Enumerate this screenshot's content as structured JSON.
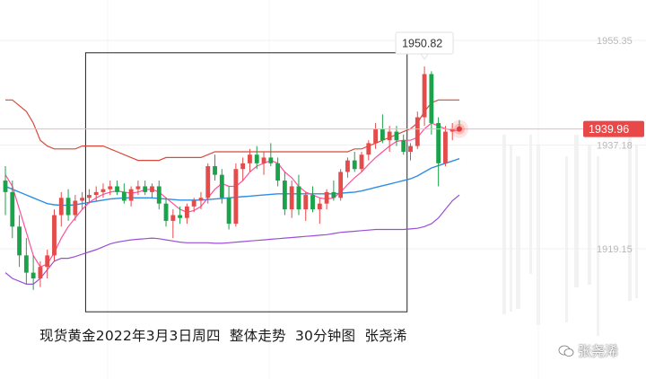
{
  "chart_data": {
    "type": "candlestick",
    "title": "",
    "price_axis_ticks": [
      1955.35,
      1937.18,
      1919.15
    ],
    "current_price": 1939.96,
    "high_annotation": 1950.82,
    "ylim": [
      1905,
      1960
    ],
    "colors": {
      "up": "#e44b4b",
      "down": "#1aa34a",
      "upper_band": "#d74a3c",
      "middle_band": "#2f8de4",
      "lower_band": "#9a4fd6",
      "short_ma": "#ff4f9b",
      "box": "#222222",
      "price_line": "#f0a0a0"
    },
    "candles": [
      [
        1931.0,
        1933.5,
        1925.0,
        1929.0
      ],
      [
        1929.0,
        1931.0,
        1921.0,
        1923.0
      ],
      [
        1923.0,
        1925.0,
        1916.0,
        1918.0
      ],
      [
        1918.0,
        1921.0,
        1913.0,
        1915.0
      ],
      [
        1915.0,
        1918.0,
        1912.0,
        1914.0
      ],
      [
        1914.0,
        1917.0,
        1912.5,
        1916.0
      ],
      [
        1916.0,
        1919.0,
        1914.0,
        1918.0
      ],
      [
        1918.0,
        1926.0,
        1917.0,
        1925.0
      ],
      [
        1925.0,
        1929.0,
        1923.0,
        1928.0
      ],
      [
        1928.0,
        1929.5,
        1924.0,
        1925.0
      ],
      [
        1925.0,
        1928.5,
        1924.0,
        1927.5
      ],
      [
        1927.5,
        1929.0,
        1926.0,
        1928.0
      ],
      [
        1928.0,
        1929.5,
        1927.0,
        1928.5
      ],
      [
        1928.5,
        1930.0,
        1927.5,
        1929.0
      ],
      [
        1929.0,
        1930.5,
        1928.0,
        1929.5
      ],
      [
        1929.5,
        1931.0,
        1928.5,
        1930.0
      ],
      [
        1930.0,
        1931.0,
        1928.5,
        1929.0
      ],
      [
        1929.0,
        1930.5,
        1927.0,
        1927.5
      ],
      [
        1927.5,
        1930.0,
        1926.5,
        1929.5
      ],
      [
        1929.5,
        1931.0,
        1928.5,
        1930.0
      ],
      [
        1930.0,
        1931.0,
        1928.5,
        1929.0
      ],
      [
        1929.0,
        1930.5,
        1928.0,
        1930.0
      ],
      [
        1930.0,
        1931.0,
        1926.0,
        1927.0
      ],
      [
        1927.0,
        1928.0,
        1923.0,
        1924.0
      ],
      [
        1924.0,
        1926.0,
        1921.0,
        1925.0
      ],
      [
        1925.0,
        1926.5,
        1923.5,
        1924.5
      ],
      [
        1924.5,
        1927.0,
        1923.5,
        1926.5
      ],
      [
        1926.5,
        1928.0,
        1925.5,
        1927.5
      ],
      [
        1927.5,
        1929.0,
        1926.0,
        1928.0
      ],
      [
        1928.0,
        1934.0,
        1927.0,
        1933.5
      ],
      [
        1933.5,
        1935.5,
        1931.0,
        1932.0
      ],
      [
        1932.0,
        1933.0,
        1927.0,
        1928.0
      ],
      [
        1928.0,
        1930.0,
        1922.5,
        1923.5
      ],
      [
        1923.5,
        1934.0,
        1923.0,
        1933.0
      ],
      [
        1933.0,
        1935.0,
        1931.0,
        1934.0
      ],
      [
        1934.0,
        1936.5,
        1932.5,
        1935.5
      ],
      [
        1935.5,
        1937.0,
        1933.0,
        1934.0
      ],
      [
        1934.0,
        1936.0,
        1932.0,
        1935.0
      ],
      [
        1935.0,
        1937.5,
        1933.5,
        1934.0
      ],
      [
        1934.0,
        1935.0,
        1930.0,
        1931.0
      ],
      [
        1931.0,
        1932.5,
        1925.0,
        1926.0
      ],
      [
        1926.0,
        1931.0,
        1924.5,
        1930.0
      ],
      [
        1930.0,
        1932.0,
        1925.0,
        1926.0
      ],
      [
        1926.0,
        1929.0,
        1924.0,
        1928.5
      ],
      [
        1928.5,
        1930.0,
        1925.5,
        1926.0
      ],
      [
        1926.0,
        1928.0,
        1923.5,
        1927.0
      ],
      [
        1927.0,
        1929.5,
        1926.0,
        1929.0
      ],
      [
        1929.0,
        1931.0,
        1927.5,
        1928.0
      ],
      [
        1928.0,
        1933.0,
        1927.5,
        1932.5
      ],
      [
        1932.5,
        1935.0,
        1931.5,
        1934.5
      ],
      [
        1934.5,
        1936.0,
        1932.5,
        1933.0
      ],
      [
        1933.0,
        1936.0,
        1932.5,
        1935.5
      ],
      [
        1935.5,
        1938.0,
        1934.5,
        1937.5
      ],
      [
        1937.5,
        1941.0,
        1936.5,
        1940.0
      ],
      [
        1940.0,
        1942.5,
        1937.5,
        1938.0
      ],
      [
        1938.0,
        1940.5,
        1936.0,
        1939.5
      ],
      [
        1939.5,
        1940.5,
        1937.0,
        1938.0
      ],
      [
        1938.0,
        1939.0,
        1935.5,
        1936.0
      ],
      [
        1936.0,
        1937.5,
        1934.5,
        1937.0
      ],
      [
        1937.0,
        1943.0,
        1936.5,
        1942.0
      ],
      [
        1942.0,
        1950.82,
        1940.5,
        1949.5
      ],
      [
        1949.5,
        1950.0,
        1939.0,
        1941.0
      ],
      [
        1941.0,
        1942.0,
        1930.0,
        1934.0
      ],
      [
        1934.0,
        1940.5,
        1933.5,
        1939.5
      ],
      [
        1939.5,
        1941.0,
        1938.0,
        1940.0
      ],
      [
        1940.0,
        1941.5,
        1939.5,
        1939.96
      ]
    ],
    "upper_band": [
      1945,
      1945,
      1944,
      1943,
      1941,
      1938,
      1937,
      1936.5,
      1936.5,
      1936.5,
      1936.5,
      1937,
      1937,
      1937,
      1937,
      1936.5,
      1936,
      1935.5,
      1935,
      1934.5,
      1934.5,
      1934.5,
      1934.5,
      1935,
      1935,
      1935,
      1935,
      1935,
      1935,
      1935.5,
      1936,
      1936,
      1936,
      1936,
      1936,
      1936,
      1936,
      1936,
      1936,
      1936,
      1936,
      1936,
      1936,
      1936,
      1936,
      1936,
      1936,
      1936,
      1936,
      1936,
      1936.5,
      1936.5,
      1937,
      1937.5,
      1938,
      1938.5,
      1939,
      1939.5,
      1940,
      1941,
      1943,
      1944.5,
      1945,
      1945,
      1945,
      1945
    ],
    "middle_band": [
      1930,
      1929.5,
      1929,
      1928.5,
      1928,
      1927.5,
      1927,
      1926.8,
      1926.7,
      1926.7,
      1926.8,
      1927,
      1927.2,
      1927.4,
      1927.6,
      1927.8,
      1927.9,
      1928,
      1928,
      1928,
      1928,
      1928,
      1927.9,
      1927.8,
      1927.7,
      1927.6,
      1927.6,
      1927.6,
      1927.6,
      1927.7,
      1927.8,
      1927.9,
      1928,
      1928.1,
      1928.2,
      1928.3,
      1928.4,
      1928.5,
      1928.6,
      1928.7,
      1928.7,
      1928.7,
      1928.7,
      1928.7,
      1928.7,
      1928.7,
      1928.7,
      1928.7,
      1928.8,
      1928.9,
      1929,
      1929.2,
      1929.5,
      1929.8,
      1930.1,
      1930.4,
      1930.7,
      1931,
      1931.3,
      1931.8,
      1932.5,
      1933.2,
      1933.6,
      1934,
      1934.4,
      1934.8
    ],
    "lower_band": [
      1915,
      1914,
      1913.5,
      1913,
      1913,
      1914,
      1915.5,
      1917,
      1917.5,
      1917.5,
      1917.8,
      1918.2,
      1918.6,
      1919,
      1919.5,
      1920,
      1920.3,
      1920.5,
      1920.7,
      1920.8,
      1920.9,
      1921,
      1920.9,
      1920.7,
      1920.5,
      1920.3,
      1920.2,
      1920.2,
      1920.2,
      1920.2,
      1920.1,
      1920.1,
      1920.2,
      1920.3,
      1920.4,
      1920.5,
      1920.6,
      1920.7,
      1920.8,
      1920.9,
      1921.0,
      1921.1,
      1921.2,
      1921.3,
      1921.4,
      1921.5,
      1921.6,
      1921.8,
      1922,
      1922.1,
      1922.2,
      1922.3,
      1922.4,
      1922.5,
      1922.5,
      1922.5,
      1922.5,
      1922.5,
      1922.6,
      1922.7,
      1923,
      1923.5,
      1924.5,
      1926,
      1927.5,
      1928.5
    ],
    "short_ma": [
      1932,
      1930,
      1926,
      1922,
      1918,
      1916,
      1916.5,
      1918.5,
      1921,
      1923,
      1924.5,
      1926,
      1927.2,
      1928,
      1928.6,
      1929,
      1929.2,
      1929,
      1928.8,
      1929,
      1929.4,
      1929.5,
      1929,
      1928,
      1927,
      1926,
      1925.5,
      1925.8,
      1926.5,
      1928,
      1929.5,
      1930.5,
      1930,
      1930,
      1931,
      1932.5,
      1933.5,
      1934,
      1934.5,
      1934,
      1932.5,
      1931.5,
      1930,
      1929,
      1928.5,
      1928,
      1927.8,
      1928,
      1929,
      1930.3,
      1931.5,
      1932.5,
      1933.8,
      1935,
      1936,
      1937,
      1937.8,
      1938,
      1938,
      1938.5,
      1940,
      1941,
      1940.5,
      1940,
      1939.8,
      1939.6
    ],
    "caption": "现货黄金2022年3月3日周四  整体走势  30分钟图  张尧浠",
    "watermark": "张尧浠"
  }
}
